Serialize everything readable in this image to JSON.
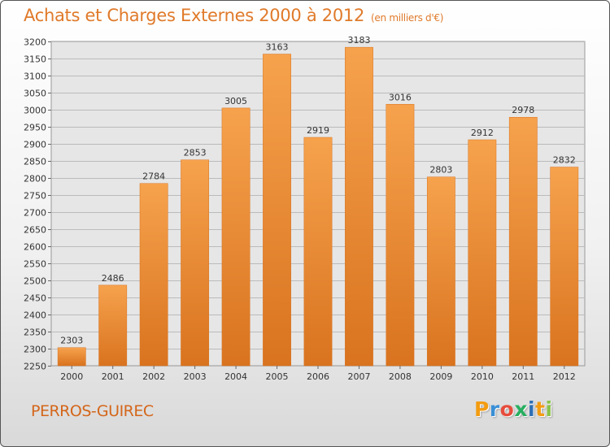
{
  "header": {
    "title": "Achats et Charges Externes 2000 à 2012",
    "unit_note": "(en milliers d'€)"
  },
  "footer": {
    "city": "PERROS-GUIREC",
    "logo_text": "Proxiti",
    "logo_letter_colors": [
      "#f39c12",
      "#3a8fd6",
      "#e74c3c",
      "#27ae60",
      "#2f6fb5",
      "#f39c12",
      "#8bc34a"
    ]
  },
  "colors": {
    "title": "#e07a2a",
    "bar_light": "#f6a24d",
    "bar_dark": "#d9731f",
    "grid": "#bbbbbb",
    "plot_bg": "#e6e6e6"
  },
  "chart_data": {
    "type": "bar",
    "categories": [
      "2000",
      "2001",
      "2002",
      "2003",
      "2004",
      "2005",
      "2006",
      "2007",
      "2008",
      "2009",
      "2010",
      "2011",
      "2012"
    ],
    "values": [
      2303,
      2486,
      2784,
      2853,
      3005,
      3163,
      2919,
      3183,
      3016,
      2803,
      2912,
      2978,
      2832
    ],
    "ylim": [
      2250,
      3200
    ],
    "ytick_step": 50,
    "grid": true,
    "data_labels": true
  }
}
